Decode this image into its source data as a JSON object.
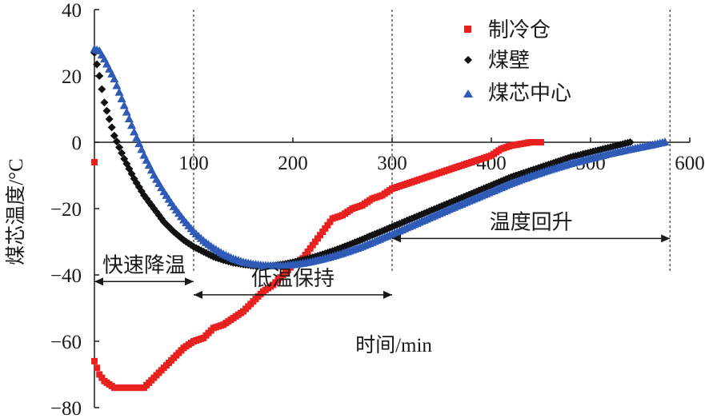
{
  "chart_data": {
    "type": "scatter",
    "xlabel": "时间/min",
    "ylabel": "煤芯温度/°C",
    "xlim": [
      0,
      600
    ],
    "ylim": [
      -80,
      40
    ],
    "x_ticks": [
      100,
      200,
      300,
      400,
      500,
      600
    ],
    "y_ticks": [
      40,
      20,
      0,
      -20,
      -40,
      -60,
      -80
    ],
    "x_tick_labels": [
      "100",
      "200",
      "300",
      "400",
      "500",
      "600"
    ],
    "y_tick_labels": [
      "40",
      "20",
      "0",
      "−20",
      "−40",
      "−60",
      "−80"
    ],
    "grid": false,
    "legend_position": "top-right",
    "series": [
      {
        "name": "制冷仓",
        "marker": "square",
        "color": "#e8211f",
        "x": [
          0,
          0,
          5,
          10,
          20,
          30,
          40,
          50,
          60,
          70,
          80,
          90,
          100,
          110,
          120,
          130,
          140,
          150,
          160,
          170,
          180,
          190,
          200,
          210,
          220,
          230,
          240,
          250,
          260,
          270,
          280,
          290,
          300,
          310,
          320,
          330,
          340,
          350,
          360,
          370,
          380,
          390,
          400,
          410,
          420,
          430,
          440,
          450
        ],
        "y": [
          -6,
          -66,
          -70,
          -72,
          -74,
          -74,
          -74,
          -74,
          -71,
          -68,
          -65,
          -62,
          -60,
          -59,
          -56,
          -55,
          -53,
          -51,
          -48,
          -45,
          -43,
          -40,
          -37,
          -35,
          -31,
          -27,
          -23,
          -22,
          -20,
          -19,
          -17,
          -16,
          -14,
          -13,
          -12,
          -11,
          -10,
          -9,
          -8,
          -7,
          -6,
          -5,
          -4,
          -2,
          -1,
          -0.5,
          0,
          0
        ]
      },
      {
        "name": "煤壁",
        "marker": "diamond",
        "color": "#111111",
        "x": [
          0,
          5,
          10,
          20,
          30,
          40,
          50,
          60,
          70,
          80,
          90,
          100,
          110,
          120,
          130,
          140,
          150,
          160,
          170,
          180,
          190,
          200,
          210,
          220,
          230,
          240,
          250,
          260,
          270,
          280,
          290,
          300,
          320,
          340,
          360,
          380,
          400,
          420,
          440,
          460,
          480,
          500,
          520,
          540
        ],
        "y": [
          27,
          20,
          12,
          2,
          -5,
          -11,
          -16,
          -20,
          -24,
          -27,
          -29.5,
          -31.5,
          -33,
          -34.5,
          -35.5,
          -36.3,
          -36.8,
          -37.2,
          -37.3,
          -37.2,
          -36.8,
          -36.2,
          -35.5,
          -34.7,
          -33.8,
          -32.8,
          -31.7,
          -30.5,
          -29.3,
          -28,
          -26.8,
          -25.5,
          -23,
          -20.5,
          -18,
          -15.5,
          -13,
          -10.5,
          -8.5,
          -6.5,
          -4.5,
          -3,
          -1.5,
          0
        ]
      },
      {
        "name": "煤芯中心",
        "marker": "triangle",
        "color": "#2f5bb7",
        "x": [
          0,
          5,
          10,
          20,
          30,
          40,
          50,
          60,
          70,
          80,
          90,
          100,
          110,
          120,
          130,
          140,
          150,
          160,
          170,
          180,
          190,
          200,
          210,
          220,
          230,
          240,
          250,
          260,
          270,
          280,
          290,
          300,
          320,
          340,
          360,
          380,
          400,
          420,
          440,
          460,
          480,
          500,
          520,
          540,
          560,
          575
        ],
        "y": [
          28,
          27.5,
          25,
          19,
          11,
          3,
          -4,
          -10,
          -15,
          -19.5,
          -23.5,
          -27,
          -29.8,
          -32,
          -33.8,
          -35.2,
          -36.2,
          -36.8,
          -37.2,
          -37.3,
          -37.3,
          -37,
          -36.6,
          -36,
          -35.3,
          -34.5,
          -33.6,
          -32.6,
          -31.5,
          -30.3,
          -29,
          -27.8,
          -25.2,
          -22.6,
          -20,
          -17.5,
          -15,
          -12.5,
          -10.3,
          -8.3,
          -6.5,
          -5,
          -3.5,
          -2.2,
          -1,
          0
        ]
      }
    ],
    "annotations": {
      "phase_lines_x": [
        100,
        300,
        580
      ],
      "phases": [
        {
          "label": "快速降温",
          "x_start": 0,
          "x_end": 100,
          "y": -42
        },
        {
          "label": "低温保持",
          "x_start": 100,
          "x_end": 300,
          "y": -46
        },
        {
          "label": "温度回升",
          "x_start": 300,
          "x_end": 580,
          "y": -29
        }
      ]
    }
  }
}
